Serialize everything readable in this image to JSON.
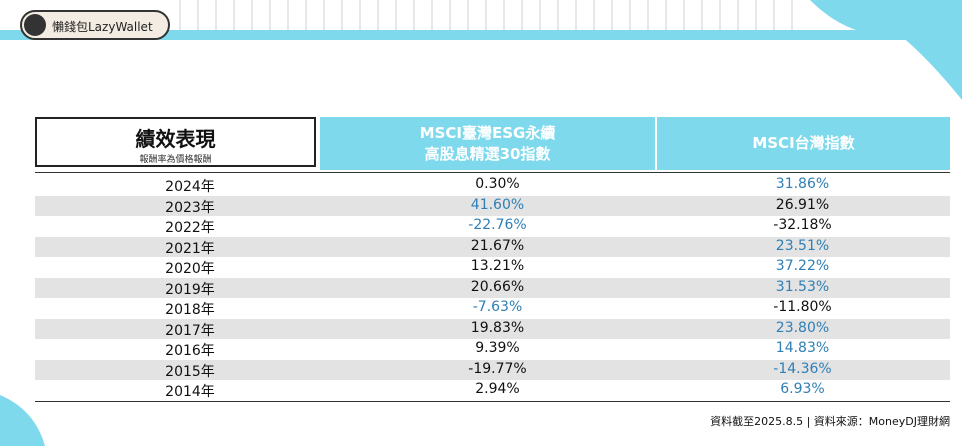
{
  "badge": "懶錢包LazyWallet",
  "table": {
    "title": "績效表現",
    "subtitle": "報酬率為價格報酬",
    "columns": [
      [
        "MSCI臺灣ESG永續",
        "高股息精選30指數"
      ],
      [
        "MSCI台灣指數"
      ]
    ],
    "rows": [
      [
        "2024年",
        "0.30%",
        "31.86%"
      ],
      [
        "2023年",
        "41.60%",
        "26.91%"
      ],
      [
        "2022年",
        "-22.76%",
        "-32.18%"
      ],
      [
        "2021年",
        "21.67%",
        "23.51%"
      ],
      [
        "2020年",
        "13.21%",
        "37.22%"
      ],
      [
        "2019年",
        "20.66%",
        "31.53%"
      ],
      [
        "2018年",
        "-7.63%",
        "-11.80%"
      ],
      [
        "2017年",
        "19.83%",
        "23.80%"
      ],
      [
        "2016年",
        "9.39%",
        "14.83%"
      ],
      [
        "2015年",
        "-19.77%",
        "-14.36%"
      ],
      [
        "2014年",
        "2.94%",
        "6.93%"
      ]
    ]
  },
  "footnote": "資料截至2025.8.5 | 資料來源：MoneyDJ理財網"
}
